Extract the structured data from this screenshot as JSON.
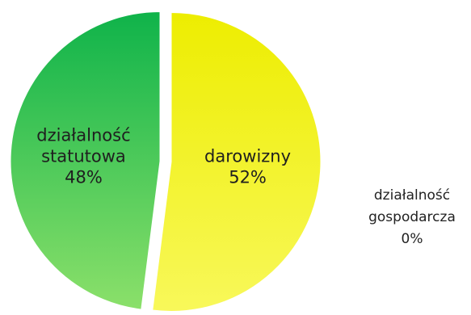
{
  "chart_data": {
    "type": "pie",
    "title": "",
    "slices": [
      {
        "label_lines": [
          "darowizny",
          "52%"
        ],
        "category": "darowizny",
        "value": 52,
        "value_label": "52%",
        "color_start": "#f8f85a",
        "color_end": "#eded00"
      },
      {
        "label_lines": [
          "działalność",
          "gospodarcza",
          "0%"
        ],
        "category": "działalność gospodarcza",
        "value": 0,
        "value_label": "0%",
        "color_start": "#dddddd",
        "color_end": "#bbbbbb"
      },
      {
        "label_lines": [
          "działalność",
          "statutowa",
          "48%"
        ],
        "category": "działalność statutowa",
        "value": 48,
        "value_label": "48%",
        "color_start": "#8be06a",
        "color_end": "#0fb34a"
      }
    ],
    "legend": "none",
    "exploded": true
  }
}
